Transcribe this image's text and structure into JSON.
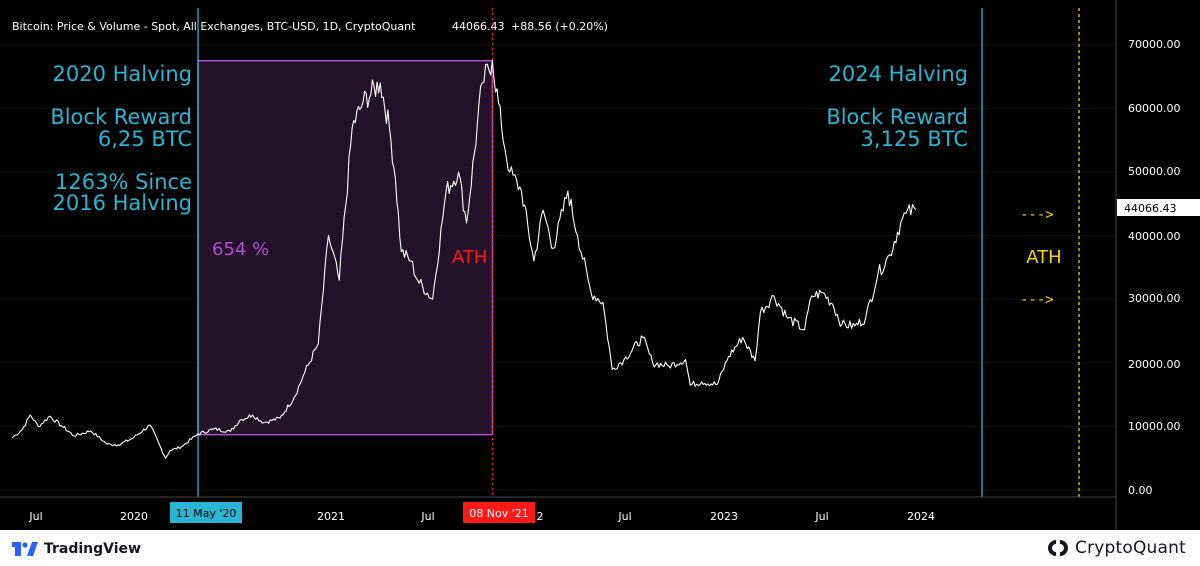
{
  "header": {
    "title": "Bitcoin: Price & Volume - Spot, All Exchanges, BTC-USD, 1D, CryptoQuant",
    "last_price": "44066.43",
    "change": "+88.56 (+0.20%)"
  },
  "colors": {
    "background": "#000000",
    "price_line": "#ffffff",
    "halving_line": "#29b6d3",
    "halving_text": "#29b6d3",
    "box_fill": "#24112a",
    "box_border": "#b04fd0",
    "box_text": "#b04fd0",
    "ath": "#ff1a1a",
    "future_ath": "#f3d21b"
  },
  "annotations": {
    "halving_2020": "2020 Halving",
    "block_reward_2020_label": "Block Reward",
    "block_reward_2020_value": "6,25 BTC",
    "since_2016_line1": "1263% Since",
    "since_2016_line2": "2016 Halving",
    "box_gain": "654 %",
    "ath_label": "ATH",
    "halving_2024": "2024 Halving",
    "block_reward_2024_label": "Block Reward",
    "block_reward_2024_value": "3,125 BTC",
    "future_ath_label": "ATH",
    "arrow_top": "--->",
    "arrow_bottom": "--->"
  },
  "markers": {
    "halving_2020_date": "11 May '20",
    "ath_date": "08 Nov '21",
    "last_price_tag": "44066.43"
  },
  "footer": {
    "left_brand": "TradingView",
    "right_brand": "CryptoQuant"
  },
  "chart_data": {
    "type": "line",
    "title": "Bitcoin: Price & Volume - Spot, All Exchanges, BTC-USD, 1D, CryptoQuant",
    "xlabel": "",
    "ylabel": "",
    "ylim": [
      0,
      72000
    ],
    "x_tick_labels": [
      "Jul",
      "2020",
      "2021",
      "Jul",
      "2",
      "Jul",
      "2023",
      "Jul",
      "2024"
    ],
    "y_tick_labels": [
      "0.00",
      "10000.00",
      "20000.00",
      "30000.00",
      "40000.00",
      "50000.00",
      "60000.00",
      "70000.00"
    ],
    "series": [
      {
        "x": [
          "2019-06-01",
          "2019-06-20",
          "2019-07-05",
          "2019-07-20",
          "2019-08-10",
          "2019-09-01",
          "2019-09-24",
          "2019-10-25",
          "2019-11-25",
          "2019-12-15",
          "2020-01-10",
          "2020-02-12",
          "2020-03-12",
          "2020-03-20",
          "2020-04-10",
          "2020-05-11",
          "2020-06-10",
          "2020-07-10",
          "2020-07-28",
          "2020-08-20",
          "2020-09-10",
          "2020-10-10",
          "2020-11-05",
          "2020-11-25",
          "2020-12-20",
          "2021-01-08",
          "2021-01-28",
          "2021-02-21",
          "2021-03-13",
          "2021-04-14",
          "2021-05-01",
          "2021-05-12",
          "2021-05-23",
          "2021-06-10",
          "2021-06-22",
          "2021-07-20",
          "2021-08-14",
          "2021-09-06",
          "2021-09-21",
          "2021-10-20",
          "2021-11-08",
          "2021-11-25",
          "2021-12-10",
          "2022-01-01",
          "2022-01-24",
          "2022-02-10",
          "2022-03-01",
          "2022-03-28",
          "2022-04-15",
          "2022-05-10",
          "2022-06-01",
          "2022-06-18",
          "2022-07-10",
          "2022-08-14",
          "2022-09-01",
          "2022-10-01",
          "2022-11-01",
          "2022-11-10",
          "2022-12-01",
          "2022-12-30",
          "2023-01-20",
          "2023-02-15",
          "2023-03-10",
          "2023-03-20",
          "2023-04-14",
          "2023-05-10",
          "2023-06-10",
          "2023-06-23",
          "2023-07-14",
          "2023-08-01",
          "2023-08-18",
          "2023-09-11",
          "2023-10-01",
          "2023-10-24",
          "2023-11-15",
          "2023-12-05",
          "2023-12-15",
          "2024-01-02"
        ],
        "values": [
          8200,
          9500,
          11800,
          10000,
          11600,
          10100,
          8500,
          9300,
          7200,
          7100,
          8100,
          10200,
          5000,
          6200,
          6800,
          8800,
          9600,
          9200,
          11000,
          11800,
          10600,
          11300,
          14500,
          18500,
          23000,
          40000,
          33000,
          57000,
          61000,
          64000,
          57000,
          49000,
          37500,
          36000,
          33000,
          30000,
          47000,
          50000,
          42000,
          64000,
          67500,
          57000,
          50000,
          47000,
          36000,
          44000,
          38000,
          47000,
          40000,
          31000,
          29500,
          19000,
          20500,
          24000,
          20000,
          19500,
          20500,
          16500,
          17000,
          16600,
          21000,
          24000,
          20300,
          28000,
          30500,
          27000,
          25200,
          30500,
          31000,
          29200,
          26000,
          25800,
          27000,
          34000,
          37000,
          42000,
          43500,
          44066
        ]
      }
    ]
  }
}
